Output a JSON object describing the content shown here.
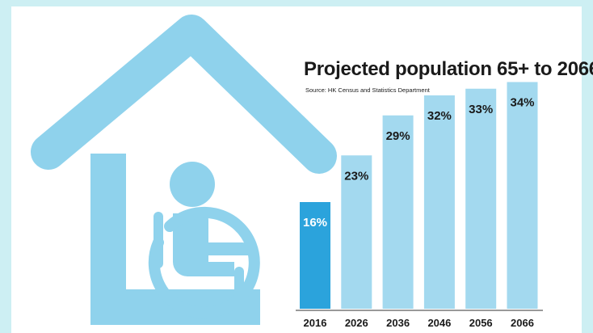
{
  "chart_data": {
    "type": "bar",
    "title": "Projected population 65+ to 2066",
    "subtitle": "Source: HK Census and Statistics Department",
    "categories": [
      "2016",
      "2026",
      "2036",
      "2046",
      "2056",
      "2066"
    ],
    "values": [
      16,
      23,
      29,
      32,
      33,
      34
    ],
    "value_labels": [
      "16%",
      "23%",
      "29%",
      "32%",
      "33%",
      "34%"
    ],
    "highlight_index": 0,
    "grid": false,
    "xlabel": "",
    "ylabel": "",
    "colors": {
      "highlight_bar": "#2ba3dc",
      "bar": "#a3d9ef",
      "illustration": "#8fd2ec",
      "background": "#cdeff3"
    }
  },
  "illustration": {
    "icons": [
      "house-icon",
      "wheelchair-person-icon"
    ]
  }
}
